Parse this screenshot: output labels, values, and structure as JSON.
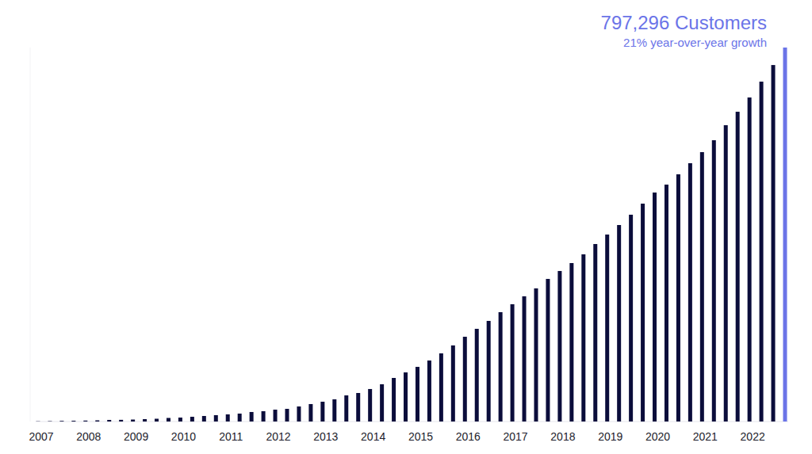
{
  "chart_data": {
    "type": "bar",
    "title": "797,296 Customers",
    "subtitle": "21% year-over-year growth",
    "categories": [
      "2007",
      null,
      null,
      null,
      "2008",
      null,
      null,
      null,
      "2009",
      null,
      null,
      null,
      "2010",
      null,
      null,
      null,
      "2011",
      null,
      null,
      null,
      "2012",
      null,
      null,
      null,
      "2013",
      null,
      null,
      null,
      "2014",
      null,
      null,
      null,
      "2015",
      null,
      null,
      null,
      "2016",
      null,
      null,
      null,
      "2017",
      null,
      null,
      null,
      "2018",
      null,
      null,
      null,
      "2019",
      null,
      null,
      null,
      "2020",
      null,
      null,
      null,
      "2021",
      null,
      null,
      null,
      "2022",
      null,
      null,
      null
    ],
    "values": [
      500,
      800,
      1400,
      1700,
      2000,
      2500,
      3400,
      3600,
      4200,
      5100,
      5900,
      7600,
      8400,
      10100,
      11800,
      13500,
      15200,
      16900,
      20300,
      22000,
      25300,
      27000,
      32100,
      37200,
      42200,
      47300,
      55700,
      60800,
      69300,
      79400,
      92900,
      104700,
      116500,
      130100,
      145300,
      162200,
      180700,
      197600,
      214500,
      233100,
      250000,
      266900,
      283800,
      304000,
      320900,
      337800,
      356400,
      378400,
      398600,
      418900,
      440900,
      464500,
      488200,
      505100,
      527000,
      550700,
      574300,
      599700,
      631700,
      660400,
      690800,
      724600,
      760000,
      797296
    ],
    "colors": [
      "#0b0d3b",
      "#0b0d3b",
      "#0b0d3b",
      "#0b0d3b",
      "#0b0d3b",
      "#0b0d3b",
      "#0b0d3b",
      "#0b0d3b",
      "#0b0d3b",
      "#0b0d3b",
      "#0b0d3b",
      "#0b0d3b",
      "#0b0d3b",
      "#0b0d3b",
      "#0b0d3b",
      "#0b0d3b",
      "#0b0d3b",
      "#0b0d3b",
      "#0b0d3b",
      "#0b0d3b",
      "#0b0d3b",
      "#0b0d3b",
      "#0b0d3b",
      "#0b0d3b",
      "#0b0d3b",
      "#0b0d3b",
      "#0b0d3b",
      "#0b0d3b",
      "#0b0d3b",
      "#0b0d3b",
      "#0b0d3b",
      "#0b0d3b",
      "#0b0d3b",
      "#0b0d3b",
      "#0b0d3b",
      "#0b0d3b",
      "#0b0d3b",
      "#0b0d3b",
      "#0b0d3b",
      "#0b0d3b",
      "#0b0d3b",
      "#0b0d3b",
      "#0b0d3b",
      "#0b0d3b",
      "#0b0d3b",
      "#0b0d3b",
      "#0b0d3b",
      "#0b0d3b",
      "#0b0d3b",
      "#0b0d3b",
      "#0b0d3b",
      "#0b0d3b",
      "#0b0d3b",
      "#0b0d3b",
      "#0b0d3b",
      "#0b0d3b",
      "#0b0d3b",
      "#0b0d3b",
      "#0b0d3b",
      "#0b0d3b",
      "#0b0d3b",
      "#0b0d3b",
      "#0b0d3b",
      "#6b74e8"
    ],
    "ylim": [
      0,
      797296
    ],
    "grid": false,
    "tick_labels": "x"
  }
}
